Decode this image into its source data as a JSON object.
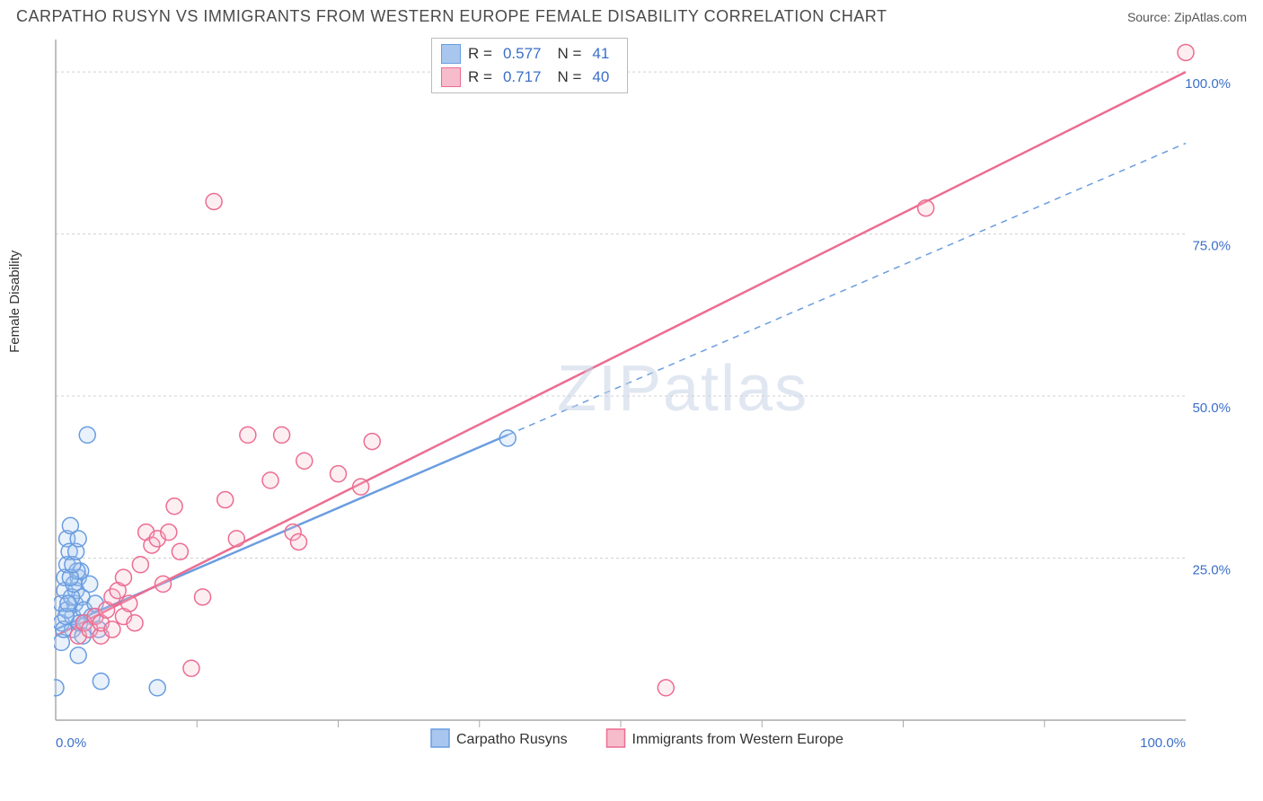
{
  "header": {
    "title": "CARPATHO RUSYN VS IMMIGRANTS FROM WESTERN EUROPE FEMALE DISABILITY CORRELATION CHART",
    "source": "Source: ZipAtlas.com"
  },
  "chart": {
    "type": "scatter",
    "ylabel": "Female Disability",
    "watermark": "ZIPatlas",
    "background_color": "#ffffff",
    "grid_color": "#d0d0d0",
    "axis_color": "#aaaaaa",
    "tick_label_color": "#3b6fc9",
    "xlim": [
      0,
      100
    ],
    "ylim": [
      0,
      105
    ],
    "x_ticks": [
      0,
      50,
      100
    ],
    "x_tick_labels": [
      "0.0%",
      "",
      "100.0%"
    ],
    "x_minor_ticks": [
      12.5,
      25,
      37.5,
      50,
      62.5,
      75,
      87.5
    ],
    "y_ticks": [
      25,
      50,
      75,
      100
    ],
    "y_tick_labels": [
      "25.0%",
      "50.0%",
      "75.0%",
      "100.0%"
    ],
    "marker_radius": 9,
    "series": [
      {
        "id": "series-a",
        "label": "Carpatho Rusyns",
        "r": 0.577,
        "n": 41,
        "color_stroke": "#6a9de0",
        "color_fill": "#a9c6ee",
        "trend": {
          "x1": 0,
          "y1": 14,
          "x2": 40,
          "y2": 44,
          "x_ext": 100,
          "y_ext": 89
        },
        "points": [
          [
            0,
            5
          ],
          [
            0.5,
            12
          ],
          [
            0.5,
            15
          ],
          [
            0.5,
            18
          ],
          [
            0.8,
            20
          ],
          [
            0.8,
            22
          ],
          [
            1,
            24
          ],
          [
            1,
            28
          ],
          [
            1.2,
            26
          ],
          [
            1.3,
            30
          ],
          [
            1.5,
            14
          ],
          [
            1.5,
            16
          ],
          [
            1.7,
            18
          ],
          [
            1.8,
            20
          ],
          [
            2,
            22
          ],
          [
            2,
            10
          ],
          [
            2.2,
            23
          ],
          [
            2.3,
            19
          ],
          [
            2.5,
            17
          ],
          [
            2.5,
            15
          ],
          [
            2.8,
            44
          ],
          [
            3,
            21
          ],
          [
            3.2,
            16
          ],
          [
            3.5,
            18
          ],
          [
            3.8,
            14
          ],
          [
            4,
            6
          ],
          [
            9,
            5
          ],
          [
            40,
            43.5
          ],
          [
            1,
            17
          ],
          [
            1.4,
            19
          ],
          [
            1.6,
            21
          ],
          [
            1.9,
            23
          ],
          [
            2.1,
            15
          ],
          [
            2.4,
            13
          ],
          [
            0.7,
            14
          ],
          [
            0.9,
            16
          ],
          [
            1.1,
            18
          ],
          [
            1.3,
            22
          ],
          [
            1.5,
            24
          ],
          [
            1.8,
            26
          ],
          [
            2.0,
            28
          ]
        ]
      },
      {
        "id": "series-b",
        "label": "Immigrants from Western Europe",
        "r": 0.717,
        "n": 40,
        "color_stroke": "#ec6d91",
        "color_fill": "#f6bccc",
        "trend": {
          "x1": 0,
          "y1": 13,
          "x2": 100,
          "y2": 100,
          "x_ext": 100,
          "y_ext": 100
        },
        "points": [
          [
            2,
            13
          ],
          [
            2.5,
            15
          ],
          [
            3,
            14
          ],
          [
            3.5,
            16
          ],
          [
            4,
            13
          ],
          [
            4,
            15
          ],
          [
            4.5,
            17
          ],
          [
            5,
            14
          ],
          [
            5,
            19
          ],
          [
            5.5,
            20
          ],
          [
            6,
            16
          ],
          [
            6,
            22
          ],
          [
            6.5,
            18
          ],
          [
            7,
            15
          ],
          [
            7.5,
            24
          ],
          [
            8,
            29
          ],
          [
            8.5,
            27
          ],
          [
            9,
            28
          ],
          [
            9.5,
            21
          ],
          [
            10,
            29
          ],
          [
            10.5,
            33
          ],
          [
            11,
            26
          ],
          [
            12,
            8
          ],
          [
            13,
            19
          ],
          [
            14,
            80
          ],
          [
            15,
            34
          ],
          [
            16,
            28
          ],
          [
            17,
            44
          ],
          [
            19,
            37
          ],
          [
            20,
            44
          ],
          [
            21,
            29
          ],
          [
            21.5,
            27.5
          ],
          [
            22,
            40
          ],
          [
            25,
            38
          ],
          [
            27,
            36
          ],
          [
            28,
            43
          ],
          [
            38,
            103
          ],
          [
            54,
            5
          ],
          [
            77,
            79
          ],
          [
            100,
            103
          ]
        ]
      }
    ]
  },
  "legend_top_labels": {
    "r": "R =",
    "n": "N ="
  }
}
